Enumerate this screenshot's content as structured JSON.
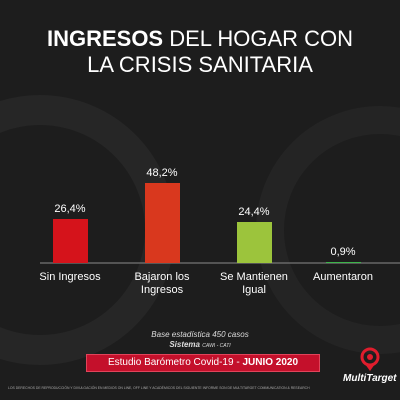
{
  "chart_data": {
    "type": "bar",
    "title": {
      "bold": "INGRESOS",
      "line1": "DEL HOGAR CON",
      "line2": "LA CRISIS SANITARIA"
    },
    "categories": [
      "Sin Ingresos",
      "Bajaron los Ingresos",
      "Se Mantienen Igual",
      "Aumentaron"
    ],
    "values": [
      26.4,
      48.2,
      24.4,
      0.9
    ],
    "value_labels": [
      "26,4%",
      "48,2%",
      "24,4%",
      "0,9%"
    ],
    "colors": [
      "#d5131b",
      "#d9381e",
      "#9cc43c",
      "#3cb54a"
    ],
    "notes": {
      "base": "Base estadística 450 casos",
      "system_bold": "Sistema",
      "system": "CAWI - CATI"
    },
    "banner": {
      "text": "Estudio Barómetro Covid-19 -",
      "bold": "JUNIO 2020"
    },
    "footer": "LOS DERECHOS DE REPRODUCCIÓN Y DIVULGACIÓN EN MEDIOS ON LINE, OFF LINE Y ACADÉMICOS DEL SIGUIENTE INFORME SON DE MULTITARGET COMMUNICATION & RESEARCH",
    "logo": "MultiTarget"
  }
}
